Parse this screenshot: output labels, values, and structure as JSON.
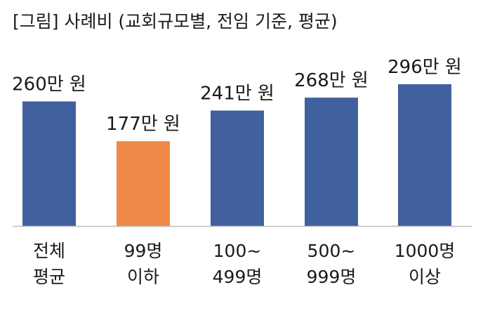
{
  "chart_data": {
    "type": "bar",
    "title": "[그림] 사례비 (교회규모별, 전임 기준, 평균)",
    "categories": [
      [
        "전체",
        "평균"
      ],
      [
        "99명",
        "이하"
      ],
      [
        "100~",
        "499명"
      ],
      [
        "500~",
        "999명"
      ],
      [
        "1000명",
        "이상"
      ]
    ],
    "values": [
      260,
      177,
      241,
      268,
      296
    ],
    "value_labels": [
      "260만 원",
      "177만 원",
      "241만 원",
      "268만 원",
      "296만 원"
    ],
    "unit": "만 원",
    "bar_colors": [
      "#41609e",
      "#ef8947",
      "#41609e",
      "#41609e",
      "#41609e"
    ],
    "axis_color": "#bdbdbd",
    "xlabel": "",
    "ylabel": "",
    "grid": false,
    "legend": "none"
  }
}
